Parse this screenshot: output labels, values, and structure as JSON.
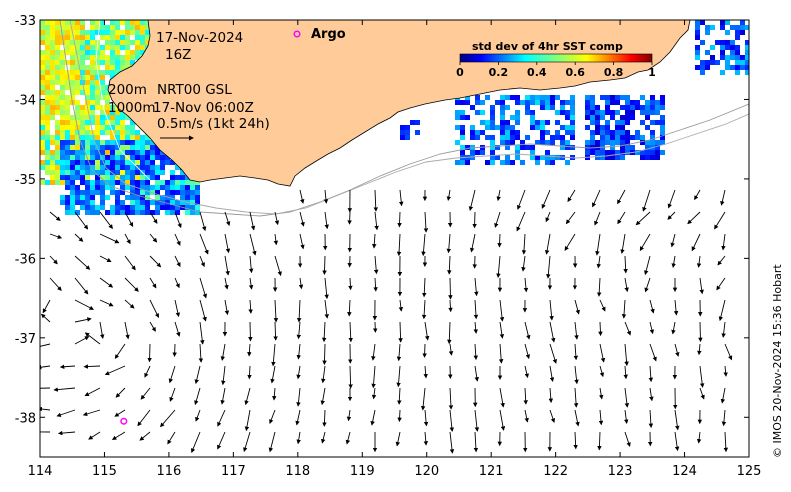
{
  "map": {
    "date": "17-Nov-2024",
    "hour": "16Z",
    "depth_line_1": "200m",
    "depth_line_2": "1000m",
    "product": "NRT00 GSL",
    "product_time": "17-Nov 06:00Z",
    "scale_label": "0.5m/s (1kt 24h)",
    "argo_label": "Argo",
    "credit": "© IMOS 20-Nov-2024 15:36 Hobart",
    "colors": {
      "land": "#ffcc99",
      "argo_marker": "#ff00ff",
      "vector": "#000000",
      "isobath": "#999999"
    },
    "x_axis": {
      "range": [
        114,
        125
      ],
      "ticks": [
        "114",
        "115",
        "116",
        "117",
        "118",
        "119",
        "120",
        "121",
        "122",
        "123",
        "124",
        "125"
      ]
    },
    "y_axis": {
      "range": [
        -38.5,
        -33
      ],
      "ticks": [
        "-33",
        "-34",
        "-35",
        "-36",
        "-37",
        "-38"
      ]
    },
    "colorbar": {
      "title": "std dev of 4hr SST comp",
      "ticks": [
        "0",
        "0.2",
        "0.4",
        "0.6",
        "0.8",
        "1"
      ],
      "range": [
        0,
        1
      ],
      "colormap": "jet"
    },
    "argo_floats": [
      {
        "lon": 115.3,
        "lat": -38.05
      }
    ]
  }
}
